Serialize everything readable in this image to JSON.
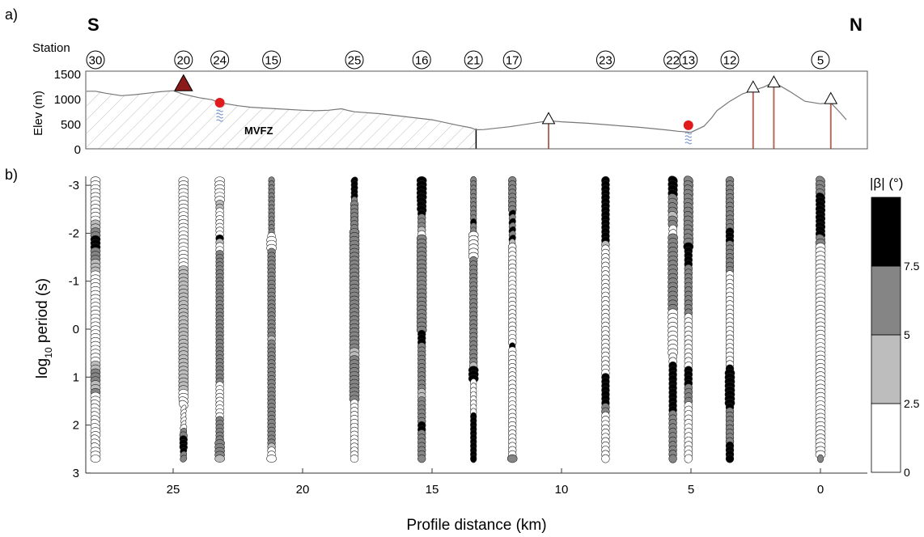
{
  "panel_a": {
    "label": "a)",
    "south_label": "S",
    "north_label": "N",
    "station_label": "Station",
    "ylabel": "Elev (m)",
    "yticks": [
      "1500",
      "1000",
      "500",
      "0"
    ],
    "zone_label": "MVFZ",
    "stations": [
      {
        "id": "30",
        "dist": 28.0
      },
      {
        "id": "20",
        "dist": 24.6
      },
      {
        "id": "24",
        "dist": 23.2
      },
      {
        "id": "15",
        "dist": 21.2
      },
      {
        "id": "25",
        "dist": 18.0
      },
      {
        "id": "16",
        "dist": 15.4
      },
      {
        "id": "21",
        "dist": 13.4
      },
      {
        "id": "17",
        "dist": 11.9
      },
      {
        "id": "23",
        "dist": 8.3
      },
      {
        "id": "22",
        "dist": 5.7
      },
      {
        "id": "13",
        "dist": 5.1
      },
      {
        "id": "12",
        "dist": 3.5
      },
      {
        "id": "5",
        "dist": 0.0
      }
    ],
    "topography": [
      [
        28.8,
        1150
      ],
      [
        28.0,
        1150
      ],
      [
        27.6,
        1110
      ],
      [
        27.0,
        1060
      ],
      [
        26.5,
        1080
      ],
      [
        26.0,
        1110
      ],
      [
        25.5,
        1140
      ],
      [
        25.0,
        1160
      ],
      [
        24.6,
        1090
      ],
      [
        24.0,
        1020
      ],
      [
        23.5,
        980
      ],
      [
        23.2,
        920
      ],
      [
        22.5,
        860
      ],
      [
        22.0,
        830
      ],
      [
        21.0,
        800
      ],
      [
        20.0,
        770
      ],
      [
        19.5,
        760
      ],
      [
        19.0,
        770
      ],
      [
        18.5,
        800
      ],
      [
        18.2,
        760
      ],
      [
        18.0,
        740
      ],
      [
        17.0,
        700
      ],
      [
        16.0,
        640
      ],
      [
        15.0,
        580
      ],
      [
        14.0,
        470
      ],
      [
        13.5,
        420
      ],
      [
        13.3,
        380
      ],
      [
        13.0,
        385
      ],
      [
        12.0,
        440
      ],
      [
        11.0,
        520
      ],
      [
        10.5,
        560
      ],
      [
        10.0,
        540
      ],
      [
        9.0,
        510
      ],
      [
        8.0,
        470
      ],
      [
        7.0,
        430
      ],
      [
        6.0,
        380
      ],
      [
        5.5,
        350
      ],
      [
        5.0,
        330
      ],
      [
        4.5,
        450
      ],
      [
        4.2,
        620
      ],
      [
        4.0,
        760
      ],
      [
        3.5,
        950
      ],
      [
        3.0,
        1100
      ],
      [
        2.7,
        1150
      ],
      [
        2.2,
        1230
      ],
      [
        1.8,
        1330
      ],
      [
        1.2,
        1150
      ],
      [
        0.6,
        950
      ],
      [
        0.0,
        900
      ],
      [
        -0.4,
        920
      ],
      [
        -0.8,
        700
      ],
      [
        -1.0,
        580
      ]
    ],
    "zone_hatch_range": [
      28.8,
      13.3
    ],
    "fault_at": 13.3,
    "triangles": [
      {
        "dist": 24.6,
        "elev": 1300,
        "kind": "dark"
      },
      {
        "dist": 10.5,
        "elev": 600,
        "kind": "open"
      },
      {
        "dist": 2.6,
        "elev": 1230,
        "kind": "open"
      },
      {
        "dist": 1.8,
        "elev": 1330,
        "kind": "open"
      },
      {
        "dist": -0.4,
        "elev": 1000,
        "kind": "open"
      }
    ],
    "red_dots": [
      {
        "dist": 23.2,
        "elev": 920
      },
      {
        "dist": 5.1,
        "elev": 470
      }
    ],
    "wells": [
      {
        "dist": 10.5,
        "top": 500,
        "bottom": 0
      },
      {
        "dist": 2.6,
        "top": 1150,
        "bottom": 0
      },
      {
        "dist": 1.8,
        "top": 1300,
        "bottom": 0
      },
      {
        "dist": -0.4,
        "top": 950,
        "bottom": 0
      }
    ]
  },
  "chart_data": {
    "type": "ellipse-pseudosection",
    "label": "b)",
    "xlabel": "Profile distance (km)",
    "ylabel": "log10 period (s)",
    "ylabel_main": "log",
    "ylabel_sub": "10",
    "ylabel_rest": " period (s)",
    "xticks": [
      "25",
      "20",
      "15",
      "10",
      "5",
      "0"
    ],
    "xtick_values": [
      25,
      20,
      15,
      10,
      5,
      0
    ],
    "xlim": [
      28.8,
      -1.5
    ],
    "ylim": [
      -3.5,
      3.0
    ],
    "yticks": [
      "-3",
      "-2",
      "-1",
      "0",
      "1",
      "2",
      "3"
    ],
    "ytick_values": [
      -3,
      -2,
      -1,
      0,
      1,
      2,
      3
    ],
    "colorbar": {
      "title": "|β| (°)",
      "ticks": [
        "0",
        "2.5",
        "5",
        "7.5"
      ],
      "tick_values": [
        0,
        2.5,
        5,
        7.5
      ],
      "range": [
        0,
        10
      ],
      "colors": [
        "#ffffff",
        "#bdbdbd",
        "#858585",
        "#000000"
      ]
    },
    "series": [
      {
        "station": "30",
        "dist": 28.0,
        "b": "000000000001122333222111000000000000000000000001122211200000000000000000",
        "w": "444444444444444444444444444444444444444444444444444444444444444444444444",
        "t": "0000000000000000000000000000000000000000000000000000000001111111001110000"
      },
      {
        "station": "20",
        "dist": 24.6,
        "b": "0000000000000000000000011111111111111111111111111111111000000000022333322",
        "w": "4444444444444444444444444444444444444444444444444444444444411111223333222",
        "t": "0000000000000000000000000000000000000000000000000000000001111111111111111"
      },
      {
        "station": "24",
        "dist": 23.2,
        "b": "0000001100000003100222222222222222222222222222222222200000000022222222221",
        "w": "444444333333333333333333333333333333333333333333333333333333333333334444",
        "t": "0000000000000000000000000000000000000000000000000000000000000000000000000"
      },
      {
        "station": "15",
        "dist": 21.2,
        "b": "22222222222222000022222222222222222222221222222222222222222222222221000",
        "w": "22222222222222344433333333333333333333333333333333333333333333333333334",
        "t": "0000000000000000000000000000000000000000000000000000000000000000000000000"
      },
      {
        "station": "25",
        "dist": 18.0,
        "b": "33333222222222222222222222222222222222222221122222222222000000000000000",
        "w": "22222233333334444444444444444444444444444444444444444444333333333333333",
        "t": "11111000000000000000000000000000000000000000000000000000000000000000000"
      },
      {
        "station": "16",
        "dist": 15.4,
        "b": "33333333322210222222222222222222222223332222222222211222222332222222",
        "w": "44444444333333444444444444444444444443333333333333333333333333333333",
        "t": "0000011100000000000000000000000000000000000000000000000000000000000000"
      },
      {
        "station": "21",
        "dist": 13.4,
        "b": "2222222222322000000222222222222222222222222213330000000033333333333",
        "w": "2222222222222444444333333333333333333333333334442222222222222222222",
        "t": "0000000000000000000000000000000000000000000000000000000000000000000"
      },
      {
        "station": "17",
        "dist": 11.9,
        "b": "22222222323232310000000000000000000000003000000000000000000000000002",
        "w": "33333333222222223333333333333333333333332333333333333333333333333334",
        "t": "00000001111111100000000000000000000000000000000000000000000000000000"
      },
      {
        "station": "23",
        "dist": 8.3,
        "b": "333333333333333100000000000000000000000000000033333332200000000000",
        "w": "333333333333333333333333333333333333333333333333333333333333333333",
        "t": "111111111100011000000000000000000000000000000000000000000000000000"
      },
      {
        "station": "22",
        "dist": 5.7,
        "b": "3333222212200222222222222222220000000000003333333333322222222222",
        "w": "4444444444433444444444444444444444444444333333333333333333333333",
        "t": "1111111111111000000000000000000000000000000000000000000000000000"
      },
      {
        "station": "13",
        "dist": 5.1,
        "b": "2222222222222223333322222222222000000000000333322220000000000000",
        "w": "4444444444444444333333333333333333333333333333333333333333333333",
        "t": "1111111111111100000000000000000000000000001111111111111111111111"
      },
      {
        "station": "12",
        "dist": 3.5,
        "b": "222222222222333222222200000000000000000000003333333333222222223333",
        "w": "333333333333333333333333333333333333333333333444444443333333333333",
        "t": "111111111111100000000000000000000000000000000000000000000000000000"
      },
      {
        "station": "5",
        "dist": 0.0,
        "b": "22223333333333220000000000000000000000000000000000000000000000000002",
        "w": "44444444444444444444444444444444444444444444444444444444444444444442",
        "t": "11111111111111100000000000000000000000000000000000000000000000000000"
      }
    ]
  }
}
